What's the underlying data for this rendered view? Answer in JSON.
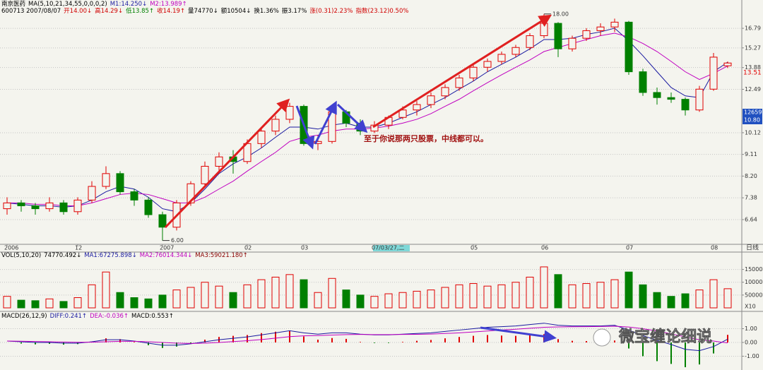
{
  "header": {
    "row1": [
      {
        "text": "南京医药",
        "color": "#000000"
      },
      {
        "text": "MA(5,10,21,34,55,0,0,0,2)",
        "color": "#000000"
      },
      {
        "text": "M1:14.250↓",
        "color": "#1a1aa0"
      },
      {
        "text": "M2:13.989↑",
        "color": "#c000c0"
      }
    ],
    "row2": [
      {
        "text": "600713 2007/08/07",
        "color": "#000000"
      },
      {
        "text": "开14.00↓",
        "color": "#d00000"
      },
      {
        "text": "高14.29↓",
        "color": "#d00000"
      },
      {
        "text": "低13.85↑",
        "color": "#008000"
      },
      {
        "text": "收14.19↑",
        "color": "#d00000"
      },
      {
        "text": "量74770↓",
        "color": "#000000"
      },
      {
        "text": "额10504↓",
        "color": "#000000"
      },
      {
        "text": "换1.36%",
        "color": "#000000"
      },
      {
        "text": "振3.17%",
        "color": "#000000"
      },
      {
        "text": "涨(0.31)2.23%",
        "color": "#d00000"
      },
      {
        "text": "指数(23.12)0.50%",
        "color": "#d00000"
      }
    ],
    "price_marker": "13.51",
    "cursor_box": [
      "12659",
      "10.80"
    ],
    "period_label": "日线",
    "note": "至于你说那两只股票，中线都可以。",
    "watermark": "微宝缠论细说"
  },
  "chart_data": [
    {
      "type": "candlestick",
      "log_scale": true,
      "grid": true,
      "up_color": "#e00000",
      "down_color": "#008000",
      "ylim": [
        5.89,
        18.36
      ],
      "yticks": [
        16.79,
        15.27,
        13.88,
        12.49,
        10.12,
        9.11,
        {
          "value": 8.2,
          "label": "8.20"
        },
        7.38,
        6.64
      ],
      "annotations": [
        {
          "value": 18,
          "label": "18.00"
        },
        {
          "value": 6,
          "label": "6.00"
        }
      ],
      "categories": [
        "2006",
        null,
        null,
        null,
        null,
        "12",
        null,
        null,
        null,
        null,
        null,
        "2007",
        null,
        null,
        null,
        null,
        null,
        "02",
        null,
        null,
        null,
        "03",
        null,
        null,
        null,
        null,
        "07/03/27,二",
        null,
        null,
        null,
        null,
        null,
        null,
        "05",
        null,
        null,
        null,
        null,
        "06",
        null,
        null,
        null,
        null,
        null,
        "07",
        null,
        null,
        null,
        null,
        null,
        "08",
        null
      ],
      "ohlc": [
        [
          7.0,
          7.4,
          6.8,
          7.2
        ],
        [
          7.2,
          7.3,
          6.9,
          7.1
        ],
        [
          7.1,
          7.2,
          6.8,
          7.0
        ],
        [
          7.0,
          7.4,
          6.9,
          7.2
        ],
        [
          7.2,
          7.3,
          6.8,
          6.9
        ],
        [
          6.9,
          7.4,
          6.8,
          7.3
        ],
        [
          7.3,
          8.0,
          7.2,
          7.8
        ],
        [
          7.8,
          8.6,
          7.7,
          8.3
        ],
        [
          8.3,
          8.4,
          7.5,
          7.6
        ],
        [
          7.6,
          7.7,
          7.1,
          7.3
        ],
        [
          7.3,
          7.4,
          6.7,
          6.8
        ],
        [
          6.8,
          6.9,
          6.0,
          6.4
        ],
        [
          6.4,
          7.3,
          6.3,
          7.2
        ],
        [
          7.2,
          8.0,
          7.1,
          7.9
        ],
        [
          7.9,
          8.8,
          7.8,
          8.6
        ],
        [
          8.6,
          9.2,
          8.4,
          9.0
        ],
        [
          9.0,
          9.3,
          8.3,
          8.8
        ],
        [
          8.8,
          9.8,
          8.7,
          9.6
        ],
        [
          9.6,
          10.4,
          9.4,
          10.2
        ],
        [
          10.2,
          11.0,
          10.0,
          10.8
        ],
        [
          10.8,
          11.7,
          10.6,
          11.5
        ],
        [
          11.5,
          11.6,
          9.5,
          9.6
        ],
        [
          9.6,
          10.0,
          9.3,
          9.7
        ],
        [
          9.7,
          11.4,
          9.6,
          11.2
        ],
        [
          11.2,
          11.3,
          10.4,
          10.6
        ],
        [
          10.6,
          10.8,
          10.0,
          10.2
        ],
        [
          10.2,
          10.7,
          10.1,
          10.5
        ],
        [
          10.5,
          11.0,
          10.3,
          10.9
        ],
        [
          10.9,
          11.5,
          10.8,
          11.3
        ],
        [
          11.3,
          11.8,
          11.0,
          11.6
        ],
        [
          11.6,
          12.3,
          11.4,
          12.1
        ],
        [
          12.1,
          12.8,
          11.9,
          12.6
        ],
        [
          12.6,
          13.4,
          12.4,
          13.2
        ],
        [
          13.2,
          14.1,
          13.0,
          13.9
        ],
        [
          13.9,
          14.5,
          13.6,
          14.3
        ],
        [
          14.3,
          15.0,
          14.1,
          14.8
        ],
        [
          14.8,
          15.5,
          14.6,
          15.3
        ],
        [
          15.3,
          16.4,
          15.1,
          16.2
        ],
        [
          16.2,
          18.0,
          16.0,
          17.2
        ],
        [
          17.2,
          17.3,
          14.6,
          15.2
        ],
        [
          15.2,
          16.2,
          15.0,
          16.0
        ],
        [
          16.0,
          16.8,
          15.8,
          16.6
        ],
        [
          16.6,
          17.2,
          16.2,
          16.9
        ],
        [
          16.9,
          17.6,
          16.5,
          17.3
        ],
        [
          17.3,
          17.4,
          13.4,
          13.6
        ],
        [
          13.6,
          13.8,
          12.1,
          12.3
        ],
        [
          12.3,
          12.6,
          11.6,
          12.0
        ],
        [
          12.0,
          12.3,
          11.7,
          11.9
        ],
        [
          11.9,
          12.0,
          11.0,
          11.3
        ],
        [
          11.3,
          12.7,
          11.2,
          12.5
        ],
        [
          12.5,
          14.9,
          12.4,
          14.6
        ],
        [
          14.0,
          14.29,
          13.85,
          14.19
        ]
      ],
      "series": [
        {
          "color": "#1a1aa0",
          "values": [
            7.2,
            7.15,
            7.1,
            7.1,
            7.05,
            7.1,
            7.3,
            7.6,
            7.8,
            7.7,
            7.4,
            7.0,
            6.9,
            7.2,
            7.7,
            8.3,
            8.7,
            9.0,
            9.4,
            9.9,
            10.4,
            10.4,
            10.3,
            10.5,
            10.6,
            10.4,
            10.4,
            10.6,
            10.9,
            11.2,
            11.6,
            12.0,
            12.5,
            13.0,
            13.6,
            14.1,
            14.6,
            15.2,
            15.9,
            15.9,
            16.0,
            16.3,
            16.5,
            16.8,
            15.8,
            14.7,
            13.6,
            12.6,
            12.1,
            12.0,
            13.6,
            14.25
          ]
        },
        {
          "color": "#c000c0",
          "values": [
            7.2,
            7.2,
            7.15,
            7.15,
            7.1,
            7.1,
            7.2,
            7.35,
            7.5,
            7.55,
            7.5,
            7.35,
            7.2,
            7.2,
            7.4,
            7.7,
            8.0,
            8.4,
            8.8,
            9.2,
            9.7,
            9.9,
            10.0,
            10.2,
            10.3,
            10.3,
            10.35,
            10.45,
            10.6,
            10.8,
            11.1,
            11.5,
            11.9,
            12.4,
            12.9,
            13.4,
            13.9,
            14.4,
            15.0,
            15.3,
            15.6,
            15.9,
            16.2,
            16.4,
            16.1,
            15.6,
            15.0,
            14.3,
            13.6,
            13.1,
            13.5,
            13.989
          ]
        }
      ]
    },
    {
      "type": "bar",
      "title": [
        {
          "text": "VOL(5,10,20)",
          "color": "#000000"
        },
        {
          "text": "74770.492↓",
          "color": "#000000"
        },
        {
          "text": "MA1:67275.898↓",
          "color": "#1a1aa0"
        },
        {
          "text": "MA2:76014.344↓",
          "color": "#c000c0"
        },
        {
          "text": "MA3:59021.180↑",
          "color": "#8b0000"
        }
      ],
      "ylim": [
        0,
        215000
      ],
      "yticks": [
        150000,
        100000,
        50000
      ],
      "unit_label": "X10",
      "values": [
        45000,
        30000,
        28000,
        35000,
        25000,
        40000,
        90000,
        140000,
        60000,
        40000,
        35000,
        50000,
        70000,
        80000,
        100000,
        85000,
        60000,
        90000,
        110000,
        120000,
        130000,
        110000,
        60000,
        115000,
        70000,
        50000,
        45000,
        55000,
        60000,
        65000,
        70000,
        80000,
        90000,
        95000,
        85000,
        90000,
        100000,
        120000,
        160000,
        130000,
        90000,
        95000,
        100000,
        110000,
        140000,
        90000,
        60000,
        45000,
        55000,
        70000,
        110000,
        74770
      ]
    },
    {
      "type": "macd",
      "title": [
        {
          "text": "MACD(26,12,9)",
          "color": "#000000"
        },
        {
          "text": "DIFF:0.241↑",
          "color": "#1a1aa0"
        },
        {
          "text": "DEA:-0.036↑",
          "color": "#c000c0"
        },
        {
          "text": "MACD:0.553↑",
          "color": "#000000"
        }
      ],
      "ylim": [
        -1.9,
        2.0
      ],
      "yticks": [
        {
          "value": 1,
          "label": "1.00"
        },
        {
          "value": 0,
          "label": "0.00"
        },
        {
          "value": -1,
          "label": "-1.00"
        }
      ],
      "up_color": "#e00000",
      "down_color": "#008000",
      "series": [
        {
          "color": "#1a1aa0",
          "values": [
            0.1,
            0.05,
            0.0,
            0.0,
            -0.05,
            -0.05,
            0.05,
            0.2,
            0.2,
            0.1,
            -0.05,
            -0.2,
            -0.2,
            -0.1,
            0.05,
            0.2,
            0.3,
            0.4,
            0.55,
            0.7,
            0.85,
            0.7,
            0.6,
            0.7,
            0.7,
            0.6,
            0.55,
            0.55,
            0.6,
            0.65,
            0.7,
            0.8,
            0.9,
            1.0,
            1.1,
            1.15,
            1.2,
            1.3,
            1.4,
            1.25,
            1.2,
            1.2,
            1.2,
            1.25,
            0.9,
            0.5,
            0.15,
            -0.15,
            -0.5,
            -0.6,
            -0.3,
            0.241
          ]
        },
        {
          "color": "#c000c0",
          "values": [
            0.1,
            0.09,
            0.07,
            0.05,
            0.03,
            0.01,
            0.02,
            0.05,
            0.08,
            0.08,
            0.05,
            0.0,
            -0.05,
            -0.07,
            -0.05,
            0.0,
            0.06,
            0.13,
            0.21,
            0.31,
            0.42,
            0.48,
            0.5,
            0.54,
            0.57,
            0.58,
            0.57,
            0.57,
            0.58,
            0.59,
            0.61,
            0.65,
            0.7,
            0.76,
            0.83,
            0.9,
            0.96,
            1.03,
            1.1,
            1.13,
            1.14,
            1.15,
            1.16,
            1.18,
            1.12,
            1.0,
            0.83,
            0.63,
            0.4,
            0.2,
            0.1,
            -0.036
          ]
        }
      ],
      "histogram": [
        0,
        -0.08,
        -0.14,
        -0.1,
        -0.16,
        -0.12,
        0.06,
        0.3,
        0.24,
        0.04,
        -0.2,
        -0.4,
        -0.3,
        -0.06,
        0.2,
        0.4,
        0.48,
        0.54,
        0.68,
        0.78,
        0.86,
        0.44,
        0.2,
        0.32,
        0.26,
        0.04,
        -0.04,
        -0.04,
        0.04,
        0.12,
        0.18,
        0.3,
        0.4,
        0.48,
        0.54,
        0.5,
        0.48,
        0.54,
        0.6,
        0.24,
        0.12,
        0.1,
        0.08,
        0.14,
        -0.44,
        -1.0,
        -1.36,
        -1.56,
        -1.8,
        -1.6,
        -0.8,
        0.553
      ]
    }
  ]
}
